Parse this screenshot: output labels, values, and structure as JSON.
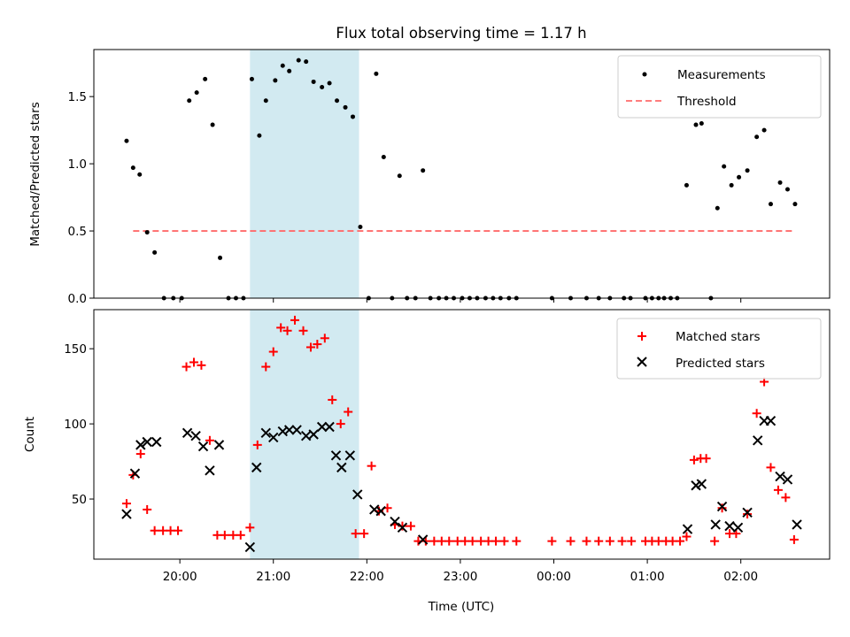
{
  "title": "Flux total observing time = 1.17 h",
  "chart_data": [
    {
      "type": "scatter",
      "ylabel": "Matched/Predicted stars",
      "x_unit": "hours since 00:00 UTC (values before midnight are negative)",
      "ylim": [
        0,
        1.85
      ],
      "xlim": [
        -4.92,
        2.95
      ],
      "yticks": [
        "0.0",
        "0.5",
        "1.0",
        "1.5"
      ],
      "highlight_span": [
        "20:45",
        "21:55"
      ],
      "threshold": {
        "value": 0.5,
        "x_from": "19:30",
        "x_to": "02:35"
      },
      "legend": {
        "position": "top-right",
        "measurements_label": "Measurements",
        "threshold_label": "Threshold"
      },
      "series": [
        {
          "name": "Measurements",
          "points": [
            [
              -4.57,
              1.17
            ],
            [
              -4.5,
              0.97
            ],
            [
              -4.43,
              0.92
            ],
            [
              -4.35,
              0.49
            ],
            [
              -4.27,
              0.34
            ],
            [
              -4.17,
              0
            ],
            [
              -4.07,
              0
            ],
            [
              -3.98,
              0
            ],
            [
              -3.9,
              1.47
            ],
            [
              -3.82,
              1.53
            ],
            [
              -3.73,
              1.63
            ],
            [
              -3.65,
              1.29
            ],
            [
              -3.57,
              0.3
            ],
            [
              -3.48,
              0
            ],
            [
              -3.4,
              0
            ],
            [
              -3.32,
              0
            ],
            [
              -3.23,
              1.63
            ],
            [
              -3.15,
              1.21
            ],
            [
              -3.08,
              1.47
            ],
            [
              -2.98,
              1.62
            ],
            [
              -2.9,
              1.73
            ],
            [
              -2.83,
              1.69
            ],
            [
              -2.73,
              1.77
            ],
            [
              -2.65,
              1.76
            ],
            [
              -2.57,
              1.61
            ],
            [
              -2.48,
              1.57
            ],
            [
              -2.4,
              1.6
            ],
            [
              -2.32,
              1.47
            ],
            [
              -2.23,
              1.42
            ],
            [
              -2.15,
              1.35
            ],
            [
              -2.07,
              0.53
            ],
            [
              -1.98,
              0
            ],
            [
              -1.9,
              1.67
            ],
            [
              -1.82,
              1.05
            ],
            [
              -1.73,
              0
            ],
            [
              -1.65,
              0.91
            ],
            [
              -1.57,
              0
            ],
            [
              -1.48,
              0
            ],
            [
              -1.4,
              0.95
            ],
            [
              -1.32,
              0
            ],
            [
              -1.23,
              0
            ],
            [
              -1.15,
              0
            ],
            [
              -1.07,
              0
            ],
            [
              -0.98,
              0
            ],
            [
              -0.9,
              0
            ],
            [
              -0.82,
              0
            ],
            [
              -0.73,
              0
            ],
            [
              -0.65,
              0
            ],
            [
              -0.57,
              0
            ],
            [
              -0.48,
              0
            ],
            [
              -0.4,
              0
            ],
            [
              -0.02,
              0
            ],
            [
              0.18,
              0
            ],
            [
              0.35,
              0
            ],
            [
              0.48,
              0
            ],
            [
              0.6,
              0
            ],
            [
              0.75,
              0
            ],
            [
              0.82,
              0
            ],
            [
              0.98,
              0
            ],
            [
              1.05,
              0
            ],
            [
              1.12,
              0
            ],
            [
              1.18,
              0
            ],
            [
              1.25,
              0
            ],
            [
              1.32,
              0
            ],
            [
              1.42,
              0.84
            ],
            [
              1.52,
              1.29
            ],
            [
              1.58,
              1.3
            ],
            [
              1.68,
              0
            ],
            [
              1.75,
              0.67
            ],
            [
              1.82,
              0.98
            ],
            [
              1.9,
              0.84
            ],
            [
              1.98,
              0.9
            ],
            [
              2.07,
              0.95
            ],
            [
              2.17,
              1.2
            ],
            [
              2.25,
              1.25
            ],
            [
              2.32,
              0.7
            ],
            [
              2.42,
              0.86
            ],
            [
              2.5,
              0.81
            ],
            [
              2.58,
              0.7
            ]
          ]
        }
      ]
    },
    {
      "type": "scatter",
      "xlabel": "Time (UTC)",
      "ylabel": "Count",
      "x_unit": "hours since 00:00 UTC (values before midnight are negative)",
      "ylim": [
        10,
        176
      ],
      "xlim": [
        -4.92,
        2.95
      ],
      "yticks": [
        "50",
        "100",
        "150"
      ],
      "xticks": [
        {
          "v": -4,
          "label": "20:00"
        },
        {
          "v": -3,
          "label": "21:00"
        },
        {
          "v": -2,
          "label": "22:00"
        },
        {
          "v": -1,
          "label": "23:00"
        },
        {
          "v": 0,
          "label": "00:00"
        },
        {
          "v": 1,
          "label": "01:00"
        },
        {
          "v": 2,
          "label": "02:00"
        }
      ],
      "highlight_span": [
        "20:45",
        "21:55"
      ],
      "legend": {
        "position": "top-right",
        "matched_label": "Matched stars",
        "predicted_label": "Predicted stars"
      },
      "series": [
        {
          "name": "Matched stars",
          "points": [
            [
              -4.57,
              47
            ],
            [
              -4.5,
              66
            ],
            [
              -4.42,
              80
            ],
            [
              -4.35,
              43
            ],
            [
              -4.27,
              29
            ],
            [
              -4.18,
              29
            ],
            [
              -4.1,
              29
            ],
            [
              -4.02,
              29
            ],
            [
              -3.93,
              138
            ],
            [
              -3.85,
              141
            ],
            [
              -3.77,
              139
            ],
            [
              -3.68,
              89
            ],
            [
              -3.6,
              26
            ],
            [
              -3.52,
              26
            ],
            [
              -3.43,
              26
            ],
            [
              -3.35,
              26
            ],
            [
              -3.25,
              31
            ],
            [
              -3.17,
              86
            ],
            [
              -3.08,
              138
            ],
            [
              -3.0,
              148
            ],
            [
              -2.92,
              164
            ],
            [
              -2.85,
              162
            ],
            [
              -2.77,
              169
            ],
            [
              -2.68,
              162
            ],
            [
              -2.6,
              151
            ],
            [
              -2.53,
              153
            ],
            [
              -2.45,
              157
            ],
            [
              -2.37,
              116
            ],
            [
              -2.28,
              100
            ],
            [
              -2.2,
              108
            ],
            [
              -2.12,
              27
            ],
            [
              -2.03,
              27
            ],
            [
              -1.95,
              72
            ],
            [
              -1.87,
              42
            ],
            [
              -1.78,
              44
            ],
            [
              -1.7,
              33
            ],
            [
              -1.62,
              32
            ],
            [
              -1.53,
              32
            ],
            [
              -1.45,
              22
            ],
            [
              -1.37,
              22
            ],
            [
              -1.28,
              22
            ],
            [
              -1.2,
              22
            ],
            [
              -1.12,
              22
            ],
            [
              -1.03,
              22
            ],
            [
              -0.95,
              22
            ],
            [
              -0.87,
              22
            ],
            [
              -0.78,
              22
            ],
            [
              -0.7,
              22
            ],
            [
              -0.62,
              22
            ],
            [
              -0.53,
              22
            ],
            [
              -0.4,
              22
            ],
            [
              -0.02,
              22
            ],
            [
              0.18,
              22
            ],
            [
              0.35,
              22
            ],
            [
              0.48,
              22
            ],
            [
              0.6,
              22
            ],
            [
              0.73,
              22
            ],
            [
              0.83,
              22
            ],
            [
              0.98,
              22
            ],
            [
              1.05,
              22
            ],
            [
              1.12,
              22
            ],
            [
              1.2,
              22
            ],
            [
              1.27,
              22
            ],
            [
              1.35,
              22
            ],
            [
              1.42,
              25
            ],
            [
              1.5,
              76
            ],
            [
              1.57,
              77
            ],
            [
              1.63,
              77
            ],
            [
              1.72,
              22
            ],
            [
              1.8,
              44
            ],
            [
              1.88,
              27
            ],
            [
              1.95,
              27
            ],
            [
              2.07,
              40
            ],
            [
              2.17,
              107
            ],
            [
              2.25,
              128
            ],
            [
              2.32,
              71
            ],
            [
              2.4,
              56
            ],
            [
              2.48,
              51
            ],
            [
              2.57,
              23
            ]
          ]
        },
        {
          "name": "Predicted stars",
          "points": [
            [
              -4.57,
              40
            ],
            [
              -4.48,
              67
            ],
            [
              -4.42,
              86
            ],
            [
              -4.35,
              88
            ],
            [
              -4.25,
              88
            ],
            [
              -3.92,
              94
            ],
            [
              -3.83,
              92
            ],
            [
              -3.75,
              85
            ],
            [
              -3.68,
              69
            ],
            [
              -3.58,
              86
            ],
            [
              -3.25,
              18
            ],
            [
              -3.18,
              71
            ],
            [
              -3.08,
              94
            ],
            [
              -3.0,
              91
            ],
            [
              -2.9,
              95
            ],
            [
              -2.83,
              96
            ],
            [
              -2.75,
              96
            ],
            [
              -2.65,
              92
            ],
            [
              -2.57,
              93
            ],
            [
              -2.48,
              98
            ],
            [
              -2.4,
              98
            ],
            [
              -2.33,
              79
            ],
            [
              -2.27,
              71
            ],
            [
              -2.18,
              79
            ],
            [
              -2.1,
              53
            ],
            [
              -1.92,
              43
            ],
            [
              -1.85,
              42
            ],
            [
              -1.7,
              35
            ],
            [
              -1.62,
              31
            ],
            [
              -1.4,
              23
            ],
            [
              1.43,
              30
            ],
            [
              1.52,
              59
            ],
            [
              1.58,
              60
            ],
            [
              1.73,
              33
            ],
            [
              1.8,
              45
            ],
            [
              1.88,
              32
            ],
            [
              1.97,
              31
            ],
            [
              2.07,
              41
            ],
            [
              2.18,
              89
            ],
            [
              2.25,
              102
            ],
            [
              2.32,
              102
            ],
            [
              2.42,
              65
            ],
            [
              2.5,
              63
            ],
            [
              2.6,
              33
            ]
          ]
        }
      ]
    }
  ],
  "colors": {
    "span": "#add8e6",
    "threshold": "#ff6b6b",
    "matched": "#ff0000",
    "predicted": "#000000",
    "measurement": "#000000"
  }
}
